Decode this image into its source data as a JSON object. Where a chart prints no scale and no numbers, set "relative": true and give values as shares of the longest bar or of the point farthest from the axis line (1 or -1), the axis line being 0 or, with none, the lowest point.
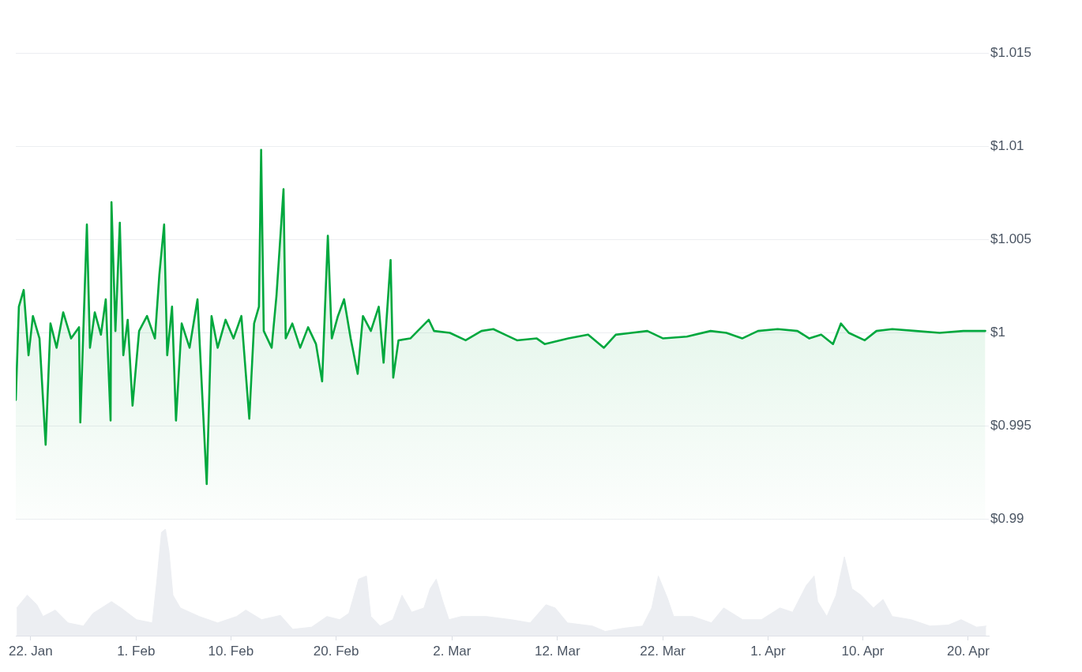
{
  "chart_data": [
    {
      "type": "area",
      "grid": "y",
      "tick_labels": "y",
      "xlim": [
        "--01-20T14:00",
        "--04-21T23:00"
      ],
      "ylim": [
        0.99,
        1.015
      ],
      "yticks": [
        {
          "value": 0.99,
          "label": "$0.99"
        },
        {
          "value": 0.995,
          "label": "$0.995"
        },
        {
          "value": 1,
          "label": "$1"
        },
        {
          "value": 1.005,
          "label": "$1.005"
        },
        {
          "value": 1.01,
          "label": "$1.01"
        },
        {
          "value": 1.015,
          "label": "$1.015"
        }
      ],
      "series": [
        {
          "color": "#00a83e",
          "x": [
            "--01-20T14:00",
            "--01-20T21:00",
            "--01-21T08:00",
            "--01-21T19:00",
            "--01-22T05:00",
            "--01-22T20:00",
            "--01-23T10:00",
            "--01-23T21:00",
            "--01-24T11:00",
            "--01-25T02:00",
            "--01-25T20:00",
            "--01-26T14:00",
            "--01-26T17:00",
            "--01-27T01:00",
            "--01-27T08:00",
            "--01-27T15:00",
            "--01-28T02:00",
            "--01-28T16:00",
            "--01-29T03:00",
            "--01-29T14:00",
            "--01-29T16:00",
            "--01-30T01:00",
            "--01-30T11:00",
            "--01-30T19:00",
            "--01-31T05:00",
            "--01-31T16:00",
            "--02-01T07:00",
            "--02-02T01:00",
            "--02-02T19:00",
            "--02-03T05:00",
            "--02-03T16:00",
            "--02-03T23:00",
            "--02-04T10:00",
            "--02-04T19:00",
            "--02-05T08:00",
            "--02-06T02:00",
            "--02-06T20:00",
            "--02-07T17:00",
            "--02-08T04:00",
            "--02-08T18:00",
            "--02-09T12:00",
            "--02-10T06:00",
            "--02-11T00:00",
            "--02-11T18:00",
            "--02-12T05:00",
            "--02-12T16:00",
            "--02-12T21:00",
            "--02-13T03:00",
            "--02-13T21:00",
            "--02-14T08:00",
            "--02-15T00:00",
            "--02-15T05:00",
            "--02-15T20:00",
            "--02-16T14:00",
            "--02-17T08:00",
            "--02-18T02:00",
            "--02-18T16:00",
            "--02-19T05:00",
            "--02-19T14:00",
            "--02-20T04:00",
            "--02-20T18:00",
            "--02-21T09:00",
            "--02-22T01:00",
            "--02-22T13:00",
            "--02-23T07:00",
            "--02-24T01:00",
            "--02-24T12:00",
            "--02-25T04:00",
            "--02-25T10:00",
            "--02-25T22:00",
            "--02-27T01:00",
            "--02-28T19:00",
            "--02-29T07:00",
            "--03-01T19:00",
            "--03-03T07:00",
            "--03-04T19:00",
            "--03-05T22:00",
            "--03-07T01:00",
            "--03-08T04:00",
            "--03-10T01:00",
            "--03-10T19:00",
            "--03-13T01:00",
            "--03-14T22:00",
            "--03-16T10:00",
            "--03-17T13:00",
            "--03-19T01:00",
            "--03-20T13:00",
            "--03-22T01:00",
            "--03-24T07:00",
            "--03-26T13:00",
            "--03-28T01:00",
            "--03-29T13:00",
            "--03-31T01:00",
            "--04-01T22:00",
            "--04-03T19:00",
            "--04-04T22:00",
            "--04-06T01:00",
            "--04-07T04:00",
            "--04-07T22:00",
            "--04-08T16:00",
            "--04-10T04:00",
            "--04-11T07:00",
            "--04-12T19:00",
            "--04-15T01:00",
            "--04-17T07:00",
            "--04-19T13:00",
            "--04-21T15:00"
          ],
          "values": [
            0.9964,
            1.0014,
            1.0023,
            0.9988,
            1.0009,
            0.9997,
            0.994,
            1.0005,
            0.9992,
            1.0011,
            0.9997,
            1.0003,
            0.9952,
            1.0009,
            1.0058,
            0.9992,
            1.0011,
            0.9999,
            1.0018,
            0.9953,
            1.007,
            1.0001,
            1.0059,
            0.9988,
            1.0007,
            0.9961,
            1.0001,
            1.0009,
            0.9997,
            1.0031,
            1.0058,
            0.9988,
            1.0014,
            0.9953,
            1.0005,
            0.9992,
            1.0018,
            0.9919,
            1.0009,
            0.9992,
            1.0007,
            0.9997,
            1.0009,
            0.9954,
            1.0005,
            1.0014,
            1.0098,
            1.0001,
            0.9992,
            1.002,
            1.0077,
            0.9997,
            1.0005,
            0.9992,
            1.0003,
            0.9994,
            0.9974,
            1.0052,
            0.9997,
            1.0009,
            1.0018,
            0.9997,
            0.9978,
            1.0009,
            1.0001,
            1.0014,
            0.9984,
            1.0039,
            0.9976,
            0.9996,
            0.9997,
            1.0007,
            1.0001,
            1.0,
            0.9996,
            1.0001,
            1.0002,
            0.9999,
            0.9996,
            0.9997,
            0.9994,
            0.9997,
            0.9999,
            0.9992,
            0.9999,
            1.0,
            1.0001,
            0.9997,
            0.9998,
            1.0001,
            1.0,
            0.9997,
            1.0001,
            1.0002,
            1.0001,
            0.9997,
            0.9999,
            0.9994,
            1.0005,
            1.0,
            0.9996,
            1.0001,
            1.0002,
            1.0001,
            1.0,
            1.0001,
            1.0001
          ]
        }
      ]
    },
    {
      "type": "area",
      "relative": true,
      "grid": false,
      "tick_labels": "x",
      "xlim": [
        "--01-20T14:00",
        "--04-21T23:00"
      ],
      "xticks": [
        {
          "value": "--01-22",
          "label": "22. Jan"
        },
        {
          "value": "--02-01",
          "label": "1. Feb"
        },
        {
          "value": "--02-10",
          "label": "10. Feb"
        },
        {
          "value": "--02-20",
          "label": "20. Feb"
        },
        {
          "value": "--03-02",
          "label": "2. Mar"
        },
        {
          "value": "--03-12",
          "label": "12. Mar"
        },
        {
          "value": "--03-22",
          "label": "22. Mar"
        },
        {
          "value": "--04-01",
          "label": "1. Apr"
        },
        {
          "value": "--04-10",
          "label": "10. Apr"
        },
        {
          "value": "--04-20",
          "label": "20. Apr"
        }
      ],
      "series": [
        {
          "color": "#eceef2",
          "x": [
            "--01-20T16:00",
            "--01-21T16:00",
            "--01-22T14:00",
            "--01-23T04:00",
            "--01-24T08:00",
            "--01-25T13:00",
            "--01-27T00:00",
            "--01-27T22:00",
            "--01-29T16:00",
            "--01-30T14:00",
            "--02-01T01:00",
            "--02-02T13:00",
            "--02-02T23:00",
            "--02-03T10:00",
            "--02-03T19:00",
            "--02-04T03:00",
            "--02-04T12:00",
            "--02-05T05:00",
            "--02-07T00:00",
            "--02-08T18:00",
            "--02-10T13:00",
            "--02-11T10:00",
            "--02-12T22:00",
            "--02-14T17:00",
            "--02-15T21:00",
            "--02-17T16:00",
            "--02-19T03:00",
            "--02-20T08:00",
            "--02-21T05:00",
            "--02-22T03:00",
            "--02-22T21:00",
            "--02-23T07:00",
            "--02-24T04:00",
            "--02-25T09:00",
            "--02-26T06:00",
            "--02-27T04:00",
            "--02-28T08:00",
            "--02-28T22:00",
            "--02-29T12:00",
            "--03-01T03:00",
            "--03-01T17:00",
            "--03-02T21:00",
            "--03-05T06:00",
            "--03-07T15:00",
            "--03-09T10:00",
            "--03-10T22:00",
            "--03-11T19:00",
            "--03-12T23:00",
            "--03-15T08:00",
            "--03-16T13:00",
            "--03-18T07:00",
            "--03-20T02:00",
            "--03-20T23:00",
            "--03-21T14:00",
            "--03-22T11:00",
            "--03-23T01:00",
            "--03-24T20:00",
            "--03-26T15:00",
            "--03-27T19:00",
            "--03-29T14:00",
            "--03-31T09:00",
            "--04-02T03:00",
            "--04-03T08:00",
            "--04-04T15:00",
            "--04-05T09:00",
            "--04-05T17:00",
            "--04-06T14:00",
            "--04-07T11:00",
            "--04-08T06:00",
            "--04-08T23:00",
            "--04-09T20:00",
            "--04-11T00:00",
            "--04-11T22:00",
            "--04-12T19:00",
            "--04-14T14:00",
            "--04-16T09:00",
            "--04-18T03:00",
            "--04-19T08:00",
            "--04-20T19:00",
            "--04-21T17:00"
          ],
          "values": [
            0.26,
            0.38,
            0.29,
            0.18,
            0.24,
            0.12,
            0.09,
            0.21,
            0.32,
            0.26,
            0.15,
            0.12,
            0.5,
            0.97,
            1,
            0.79,
            0.38,
            0.26,
            0.18,
            0.12,
            0.18,
            0.24,
            0.15,
            0.19,
            0.06,
            0.08,
            0.18,
            0.15,
            0.21,
            0.53,
            0.56,
            0.18,
            0.09,
            0.15,
            0.38,
            0.22,
            0.26,
            0.44,
            0.53,
            0.32,
            0.15,
            0.18,
            0.18,
            0.15,
            0.12,
            0.29,
            0.26,
            0.12,
            0.09,
            0.04,
            0.07,
            0.09,
            0.26,
            0.56,
            0.35,
            0.18,
            0.18,
            0.12,
            0.26,
            0.15,
            0.15,
            0.26,
            0.22,
            0.47,
            0.56,
            0.32,
            0.18,
            0.38,
            0.74,
            0.44,
            0.38,
            0.26,
            0.34,
            0.18,
            0.15,
            0.09,
            0.1,
            0.15,
            0.08,
            0.09
          ]
        }
      ]
    }
  ]
}
